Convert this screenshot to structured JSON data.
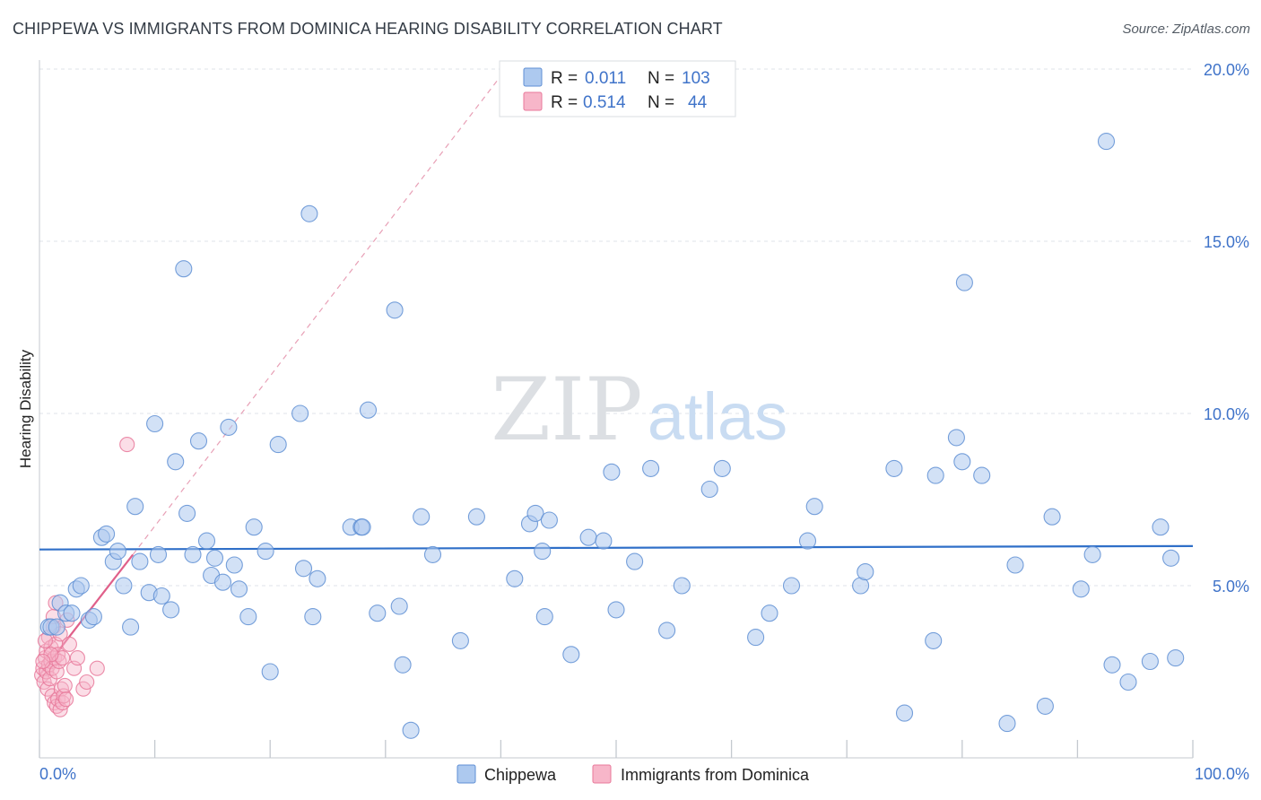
{
  "title": "CHIPPEWA VS IMMIGRANTS FROM DOMINICA HEARING DISABILITY CORRELATION CHART",
  "source": "Source: ZipAtlas.com",
  "watermark": {
    "zip": "ZIP",
    "atlas": "atlas"
  },
  "colors": {
    "chippewa_fill": "#adc9ef",
    "chippewa_stroke": "#5f8fd4",
    "chippewa_line": "#2f6fc8",
    "dominica_fill": "#f7b6c9",
    "dominica_stroke": "#e8789a",
    "dominica_line": "#e0608a",
    "grid": "#dfe3e8",
    "tick_text": "#3f73c9"
  },
  "legend": {
    "rows": [
      {
        "r_label": "R =",
        "r_value": "0.011",
        "n_label": "N =",
        "n_value": "103"
      },
      {
        "r_label": "R =",
        "r_value": "0.514",
        "n_label": "N =",
        "n_value": "44"
      }
    ]
  },
  "chart_data": {
    "type": "scatter",
    "xlabel": "",
    "ylabel": "Hearing Disability",
    "xlim": [
      0,
      100
    ],
    "ylim": [
      0,
      20
    ],
    "x_tick_labels": [
      "0.0%",
      "100.0%"
    ],
    "y_ticks": [
      5,
      10,
      15,
      20
    ],
    "y_tick_labels": [
      "5.0%",
      "10.0%",
      "15.0%",
      "20.0%"
    ],
    "grid": true,
    "legend_position": "top-center",
    "series": [
      {
        "name": "Chippewa",
        "trend": {
          "x0": 0,
          "y0": 6.05,
          "x1": 100,
          "y1": 6.15
        },
        "points": [
          [
            0.8,
            3.8
          ],
          [
            1.0,
            3.8
          ],
          [
            1.5,
            3.8
          ],
          [
            1.8,
            4.5
          ],
          [
            2.3,
            4.2
          ],
          [
            2.8,
            4.2
          ],
          [
            3.2,
            4.9
          ],
          [
            3.6,
            5.0
          ],
          [
            4.3,
            4.0
          ],
          [
            4.7,
            4.1
          ],
          [
            5.4,
            6.4
          ],
          [
            5.8,
            6.5
          ],
          [
            6.4,
            5.7
          ],
          [
            6.8,
            6.0
          ],
          [
            7.3,
            5.0
          ],
          [
            7.9,
            3.8
          ],
          [
            8.3,
            7.3
          ],
          [
            8.7,
            5.7
          ],
          [
            9.5,
            4.8
          ],
          [
            10.0,
            9.7
          ],
          [
            10.3,
            5.9
          ],
          [
            10.6,
            4.7
          ],
          [
            11.4,
            4.3
          ],
          [
            11.8,
            8.6
          ],
          [
            12.5,
            14.2
          ],
          [
            12.8,
            7.1
          ],
          [
            13.3,
            5.9
          ],
          [
            13.8,
            9.2
          ],
          [
            14.5,
            6.3
          ],
          [
            14.9,
            5.3
          ],
          [
            15.2,
            5.8
          ],
          [
            15.9,
            5.1
          ],
          [
            16.4,
            9.6
          ],
          [
            16.9,
            5.6
          ],
          [
            17.3,
            4.9
          ],
          [
            18.1,
            4.1
          ],
          [
            18.6,
            6.7
          ],
          [
            19.6,
            6.0
          ],
          [
            20.0,
            2.5
          ],
          [
            20.7,
            9.1
          ],
          [
            22.6,
            10.0
          ],
          [
            22.9,
            5.5
          ],
          [
            23.4,
            15.8
          ],
          [
            23.7,
            4.1
          ],
          [
            24.1,
            5.2
          ],
          [
            27.0,
            6.7
          ],
          [
            27.9,
            6.7
          ],
          [
            28.0,
            6.7
          ],
          [
            28.5,
            10.1
          ],
          [
            29.3,
            4.2
          ],
          [
            30.8,
            13.0
          ],
          [
            31.2,
            4.4
          ],
          [
            31.5,
            2.7
          ],
          [
            32.2,
            0.8
          ],
          [
            33.1,
            7.0
          ],
          [
            34.1,
            5.9
          ],
          [
            36.5,
            3.4
          ],
          [
            37.9,
            7.0
          ],
          [
            41.2,
            5.2
          ],
          [
            42.5,
            6.8
          ],
          [
            43.0,
            7.1
          ],
          [
            43.6,
            6.0
          ],
          [
            43.8,
            4.1
          ],
          [
            44.2,
            6.9
          ],
          [
            46.1,
            3.0
          ],
          [
            47.6,
            6.4
          ],
          [
            48.9,
            6.3
          ],
          [
            49.6,
            8.3
          ],
          [
            50.0,
            4.3
          ],
          [
            51.6,
            5.7
          ],
          [
            53.0,
            8.4
          ],
          [
            54.4,
            3.7
          ],
          [
            55.7,
            5.0
          ],
          [
            58.1,
            7.8
          ],
          [
            59.2,
            8.4
          ],
          [
            62.1,
            3.5
          ],
          [
            63.3,
            4.2
          ],
          [
            65.2,
            5.0
          ],
          [
            66.6,
            6.3
          ],
          [
            67.2,
            7.3
          ],
          [
            71.2,
            5.0
          ],
          [
            71.6,
            5.4
          ],
          [
            74.1,
            8.4
          ],
          [
            75.0,
            1.3
          ],
          [
            77.5,
            3.4
          ],
          [
            77.7,
            8.2
          ],
          [
            79.5,
            9.3
          ],
          [
            80.0,
            8.6
          ],
          [
            80.2,
            13.8
          ],
          [
            81.7,
            8.2
          ],
          [
            83.9,
            1.0
          ],
          [
            84.6,
            5.6
          ],
          [
            87.2,
            1.5
          ],
          [
            87.8,
            7.0
          ],
          [
            90.3,
            4.9
          ],
          [
            91.3,
            5.9
          ],
          [
            92.5,
            17.9
          ],
          [
            93.0,
            2.7
          ],
          [
            94.4,
            2.2
          ],
          [
            96.3,
            2.8
          ],
          [
            97.2,
            6.7
          ],
          [
            98.1,
            5.8
          ],
          [
            98.5,
            2.9
          ]
        ]
      },
      {
        "name": "Immigrants from Dominica",
        "trend": {
          "x0": 0,
          "y0": 2.4,
          "x1": 8.1,
          "y1": 5.9
        },
        "trend_extension": {
          "x0": 8.1,
          "y0": 5.9,
          "x1": 40.0,
          "y1": 19.8
        },
        "points": [
          [
            0.2,
            2.4
          ],
          [
            0.3,
            2.6
          ],
          [
            0.4,
            2.2
          ],
          [
            0.5,
            2.9
          ],
          [
            0.6,
            2.5
          ],
          [
            0.6,
            3.1
          ],
          [
            0.7,
            2.0
          ],
          [
            0.8,
            2.7
          ],
          [
            0.8,
            3.5
          ],
          [
            0.9,
            2.3
          ],
          [
            1.0,
            2.8
          ],
          [
            1.0,
            3.2
          ],
          [
            1.1,
            1.8
          ],
          [
            1.1,
            2.6
          ],
          [
            1.2,
            3.8
          ],
          [
            1.2,
            4.1
          ],
          [
            1.3,
            1.6
          ],
          [
            1.3,
            2.9
          ],
          [
            1.4,
            3.3
          ],
          [
            1.4,
            4.5
          ],
          [
            1.5,
            2.5
          ],
          [
            1.5,
            1.5
          ],
          [
            1.6,
            3.0
          ],
          [
            1.6,
            1.7
          ],
          [
            1.7,
            2.8
          ],
          [
            1.8,
            3.6
          ],
          [
            1.8,
            1.4
          ],
          [
            1.9,
            2.0
          ],
          [
            2.0,
            2.9
          ],
          [
            2.0,
            1.6
          ],
          [
            2.1,
            1.8
          ],
          [
            2.2,
            2.1
          ],
          [
            2.3,
            1.7
          ],
          [
            2.4,
            4.0
          ],
          [
            2.6,
            3.3
          ],
          [
            3.0,
            2.6
          ],
          [
            3.3,
            2.9
          ],
          [
            3.8,
            2.0
          ],
          [
            4.1,
            2.2
          ],
          [
            5.0,
            2.6
          ],
          [
            7.6,
            9.1
          ],
          [
            0.5,
            3.4
          ],
          [
            1.0,
            3.0
          ],
          [
            0.3,
            2.8
          ]
        ]
      }
    ]
  },
  "bottom_legend": [
    {
      "label": "Chippewa"
    },
    {
      "label": "Immigrants from Dominica"
    }
  ]
}
